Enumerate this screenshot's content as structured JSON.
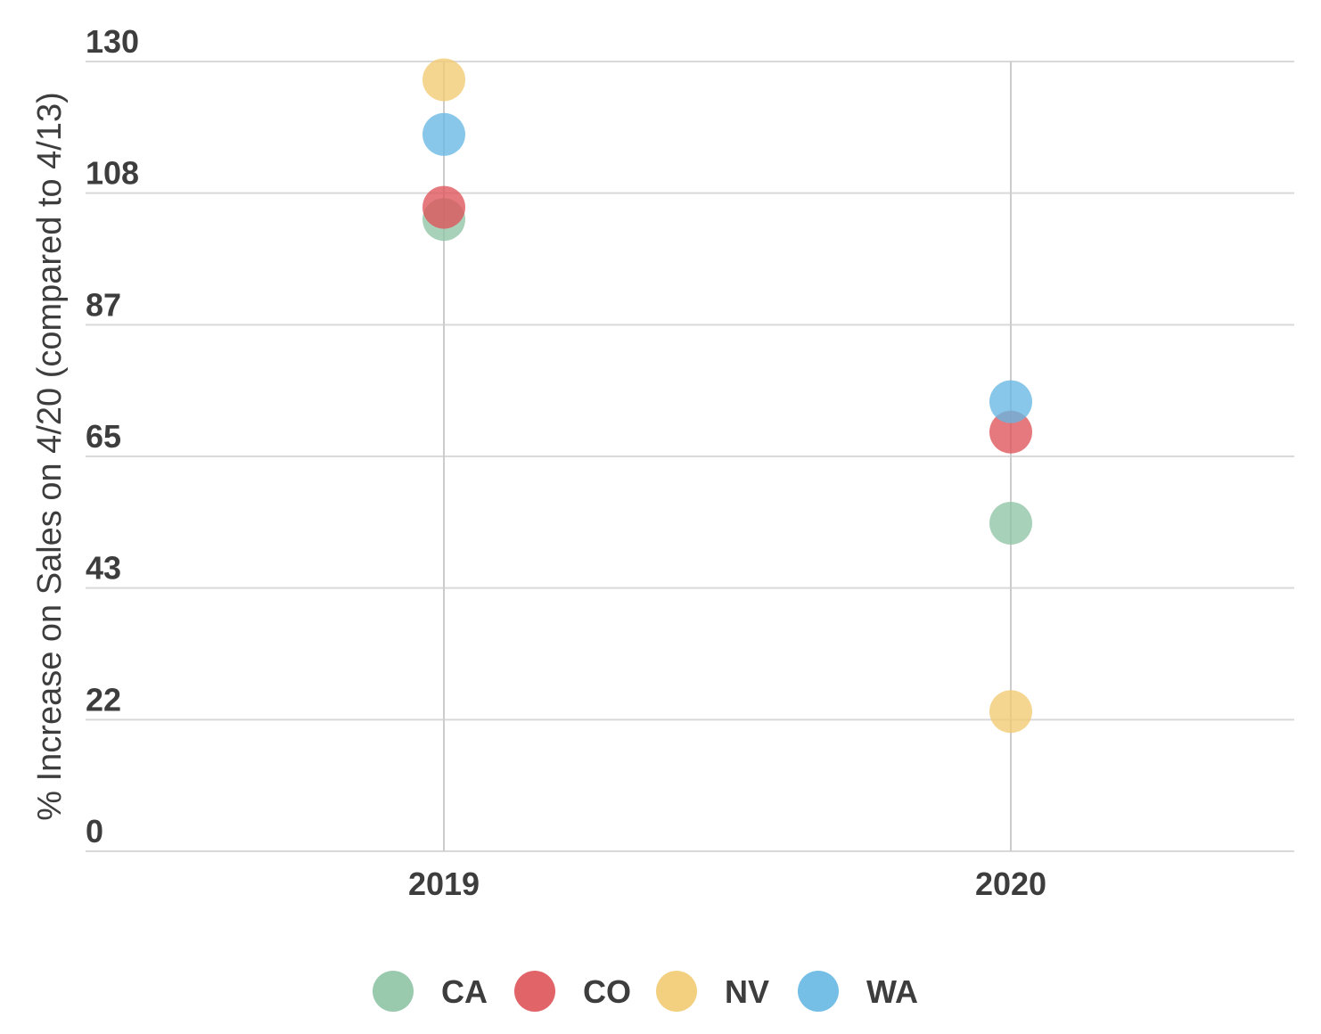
{
  "chart_data": {
    "type": "scatter",
    "categories": [
      "2019",
      "2020"
    ],
    "ylabel": "% Increase on Sales on 4/20 (compared to 4/13)",
    "xlabel": "",
    "ylim": [
      0,
      130
    ],
    "yticks": [
      "0",
      "22",
      "43",
      "65",
      "87",
      "108",
      "130"
    ],
    "grid": true,
    "legend_position": "bottom",
    "series": [
      {
        "name": "CA",
        "color": "#8fc4a5",
        "values": [
          104,
          54
        ]
      },
      {
        "name": "CO",
        "color": "#de5358",
        "values": [
          106,
          69
        ]
      },
      {
        "name": "NV",
        "color": "#f1cb72",
        "values": [
          127,
          23
        ]
      },
      {
        "name": "WA",
        "color": "#66b7e3",
        "values": [
          118,
          74
        ]
      }
    ]
  }
}
